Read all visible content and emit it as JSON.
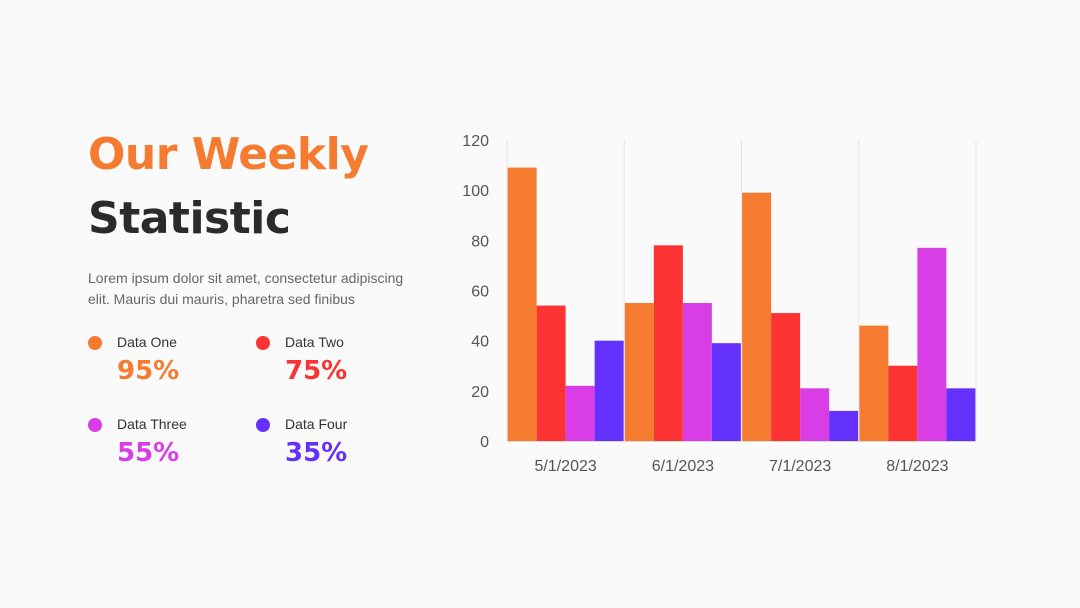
{
  "heading": {
    "line1": "Our Weekly",
    "line2": "Statistic"
  },
  "description": "Lorem ipsum dolor sit amet, consectetur adipiscing elit. Mauris dui mauris, pharetra sed finibus",
  "legend": [
    {
      "name": "Data One",
      "value": "95%",
      "color": "#f47b2f"
    },
    {
      "name": "Data Two",
      "value": "75%",
      "color": "#fb3333"
    },
    {
      "name": "Data Three",
      "value": "55%",
      "color": "#d93de5"
    },
    {
      "name": "Data Four",
      "value": "35%",
      "color": "#6430fb"
    }
  ],
  "colors": {
    "accent": "#f47b2f",
    "heading_dark": "#2b2b2b"
  },
  "chart_data": {
    "type": "bar",
    "categories": [
      "5/1/2023",
      "6/1/2023",
      "7/1/2023",
      "8/1/2023"
    ],
    "series": [
      {
        "color": "#f47b2f",
        "values": [
          109,
          55,
          99,
          46
        ]
      },
      {
        "color": "#fb3333",
        "values": [
          54,
          78,
          51,
          30
        ]
      },
      {
        "color": "#d93de5",
        "values": [
          22,
          55,
          21,
          77
        ]
      },
      {
        "color": "#6430fb",
        "values": [
          40,
          39,
          12,
          21
        ]
      }
    ],
    "ylim": [
      0,
      120
    ],
    "yticks": [
      0,
      20,
      40,
      60,
      80,
      100,
      120
    ],
    "title": "",
    "xlabel": "",
    "ylabel": "",
    "grid": "vertical"
  }
}
